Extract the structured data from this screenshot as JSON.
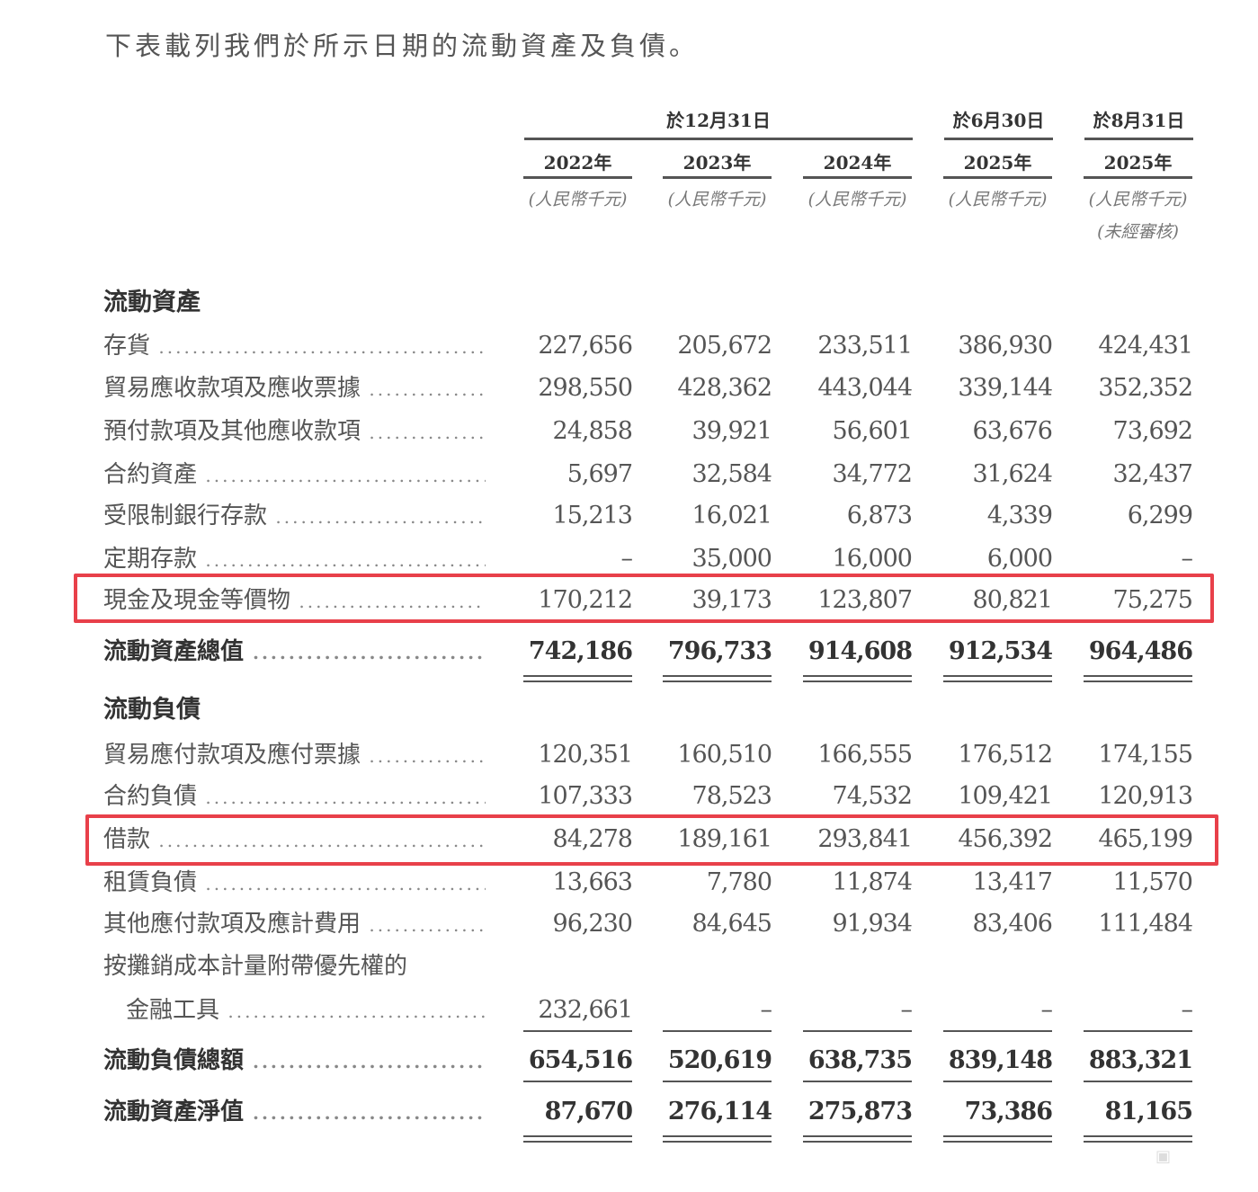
{
  "intro": "下表載列我們於所示日期的流動資產及負債。",
  "header": {
    "groups": [
      "於12月31日",
      "於6月30日",
      "於8月31日"
    ],
    "years": [
      "2022年",
      "2023年",
      "2024年",
      "2025年",
      "2025年"
    ],
    "unit": "(人民幣千元)",
    "unaudited": "(未經審核)"
  },
  "current_assets": {
    "title": "流動資產",
    "rows": [
      {
        "label": "存貨",
        "values": [
          "227,656",
          "205,672",
          "233,511",
          "386,930",
          "424,431"
        ]
      },
      {
        "label": "貿易應收款項及應收票據",
        "values": [
          "298,550",
          "428,362",
          "443,044",
          "339,144",
          "352,352"
        ]
      },
      {
        "label": "預付款項及其他應收款項",
        "values": [
          "24,858",
          "39,921",
          "56,601",
          "63,676",
          "73,692"
        ]
      },
      {
        "label": "合約資產",
        "values": [
          "5,697",
          "32,584",
          "34,772",
          "31,624",
          "32,437"
        ]
      },
      {
        "label": "受限制銀行存款",
        "values": [
          "15,213",
          "16,021",
          "6,873",
          "4,339",
          "6,299"
        ]
      },
      {
        "label": "定期存款",
        "values": [
          "–",
          "35,000",
          "16,000",
          "6,000",
          "–"
        ]
      },
      {
        "label": "現金及現金等價物",
        "values": [
          "170,212",
          "39,173",
          "123,807",
          "80,821",
          "75,275"
        ],
        "highlighted": true
      }
    ],
    "total": {
      "label": "流動資產總值",
      "values": [
        "742,186",
        "796,733",
        "914,608",
        "912,534",
        "964,486"
      ]
    }
  },
  "current_liabilities": {
    "title": "流動負債",
    "rows": [
      {
        "label": "貿易應付款項及應付票據",
        "values": [
          "120,351",
          "160,510",
          "166,555",
          "176,512",
          "174,155"
        ]
      },
      {
        "label": "合約負債",
        "values": [
          "107,333",
          "78,523",
          "74,532",
          "109,421",
          "120,913"
        ]
      },
      {
        "label": "借款",
        "values": [
          "84,278",
          "189,161",
          "293,841",
          "456,392",
          "465,199"
        ],
        "highlighted": true
      },
      {
        "label": "租賃負債",
        "values": [
          "13,663",
          "7,780",
          "11,874",
          "13,417",
          "11,570"
        ]
      },
      {
        "label": "其他應付款項及應計費用",
        "values": [
          "96,230",
          "84,645",
          "91,934",
          "83,406",
          "111,484"
        ]
      },
      {
        "label": "按攤銷成本計量附帶優先權的",
        "values": [
          "",
          "",
          "",
          "",
          ""
        ]
      },
      {
        "label": "金融工具",
        "values": [
          "232,661",
          "–",
          "–",
          "–",
          "–"
        ]
      }
    ],
    "total": {
      "label": "流動負債總額",
      "values": [
        "654,516",
        "520,619",
        "638,735",
        "839,148",
        "883,321"
      ]
    }
  },
  "net": {
    "label": "流動資產淨值",
    "values": [
      "87,670",
      "276,114",
      "275,873",
      "73,386",
      "81,165"
    ]
  },
  "colors": {
    "highlight": "#e8404a",
    "text": "#555555"
  }
}
